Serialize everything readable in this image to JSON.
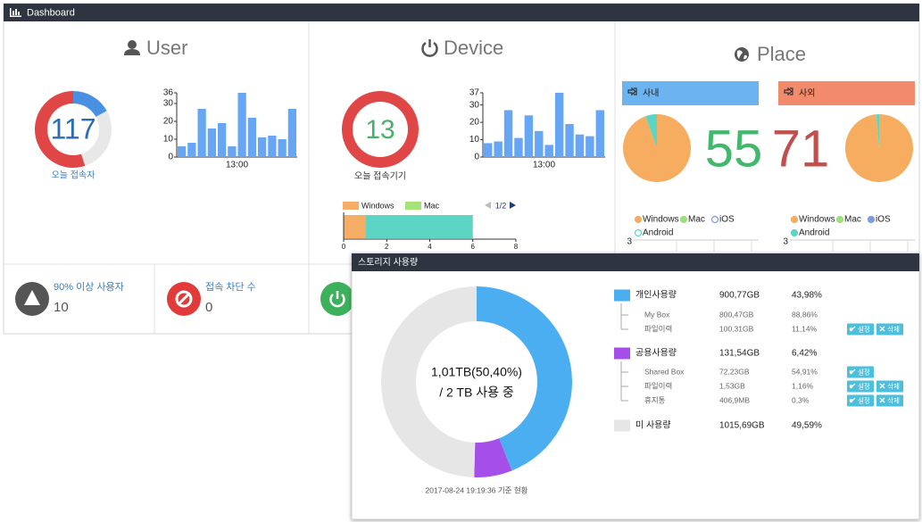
{
  "header": {
    "title": "Dashboard"
  },
  "user": {
    "title": "User",
    "count": 117,
    "count_label": "오늘 접속자",
    "donut": [
      {
        "value": 17,
        "color": "#4a90e2"
      },
      {
        "value": 28,
        "color": "#e8e8e8"
      },
      {
        "value": 55,
        "color": "#e04646"
      }
    ],
    "chart": {
      "type": "bar",
      "x_label": "13:00",
      "values": [
        6,
        8,
        27,
        16,
        19,
        6,
        36,
        22,
        11,
        12,
        10,
        27
      ],
      "ylim": [
        0,
        36
      ],
      "yticks": [
        0,
        10,
        20,
        30,
        36
      ],
      "color": "#66a6f5"
    }
  },
  "device": {
    "title": "Device",
    "count": 13,
    "count_label": "오늘 접속기기",
    "donut": [
      {
        "value": 100,
        "color": "#e04646"
      }
    ],
    "chart": {
      "type": "bar",
      "x_label": "13:00",
      "values": [
        8,
        9,
        27,
        11,
        24,
        15,
        7,
        37,
        19,
        13,
        12,
        27
      ],
      "ylim": [
        0,
        37
      ],
      "yticks": [
        0,
        10,
        20,
        30,
        37
      ],
      "color": "#66a6f5"
    },
    "os_chart": {
      "type": "stacked-bar",
      "page": "1/2",
      "xlim": [
        0,
        8
      ],
      "xticks": [
        0,
        2,
        4,
        6,
        8
      ],
      "series": [
        {
          "name": "Windows",
          "color": "#f6ad66",
          "values": [
            1
          ]
        },
        {
          "name": "Mac",
          "color": "#a4e27a",
          "bar_color": "#5dd5c4",
          "values": [
            5
          ]
        }
      ]
    }
  },
  "place": {
    "title": "Place",
    "legend": [
      {
        "name": "Windows",
        "color": "#f6ad60"
      },
      {
        "name": "Mac",
        "color": "#9de07a"
      },
      {
        "name": "iOS",
        "color": "#7e9be0"
      },
      {
        "name": "Android",
        "color": "#5dd5c4"
      }
    ],
    "groups": [
      {
        "title": "사내",
        "color": "#6cb4f0",
        "count": 55,
        "count_color": "#43b86c",
        "pie": [
          52,
          0,
          0,
          3
        ],
        "legend_hollow": [
          2,
          3
        ],
        "yticks": [
          3
        ]
      },
      {
        "title": "사외",
        "color": "#f28b6c",
        "count": 71,
        "count_color": "#c0504d",
        "pie": [
          70,
          0,
          0,
          1
        ],
        "legend_hollow": [],
        "yticks": [
          3
        ]
      }
    ]
  },
  "stats": [
    {
      "label": "90% 이상 사용자",
      "value": 10,
      "color": "#555555"
    },
    {
      "label": "접속 차단 수",
      "value": 0,
      "color": "#e03a3a"
    },
    {
      "color": "#3db05c"
    }
  ],
  "storage": {
    "title": "스토리지 사용량",
    "center": [
      "1,01TB(50,40%)",
      "/ 2 TB 사용 중"
    ],
    "timestamp": "2017-08-24 19:19:36 기준 현황",
    "groups": [
      {
        "name": "개인사용량",
        "color": "#4aaef0",
        "amount": "900,77GB",
        "percent": {
          "value": 43.98,
          "label": "43,98%"
        },
        "items": [
          {
            "name": "My Box",
            "amount": "800,47GB",
            "percent": "88,86%"
          },
          {
            "name": "파일이력",
            "amount": "100,31GB",
            "percent": "11,14%",
            "actions": [
              "설정",
              "삭제"
            ]
          }
        ]
      },
      {
        "name": "공용사용량",
        "color": "#a64ee8",
        "amount": "131,54GB",
        "percent": {
          "value": 6.42,
          "label": "6,42%"
        },
        "items": [
          {
            "name": "Shared Box",
            "amount": "72,23GB",
            "percent": "54,91%",
            "actions": [
              "설정"
            ]
          },
          {
            "name": "파일이력",
            "amount": "1,53GB",
            "percent": "1,16%",
            "actions": [
              "설정",
              "삭제"
            ]
          },
          {
            "name": "휴지통",
            "amount": "406,9MB",
            "percent": "0,3%",
            "actions": [
              "설정",
              "삭제"
            ]
          }
        ]
      },
      {
        "name": "미 사용량",
        "color": "#e6e6e6",
        "amount": "1015,69GB",
        "percent": {
          "value": 49.59,
          "label": "49,59%"
        }
      }
    ]
  }
}
